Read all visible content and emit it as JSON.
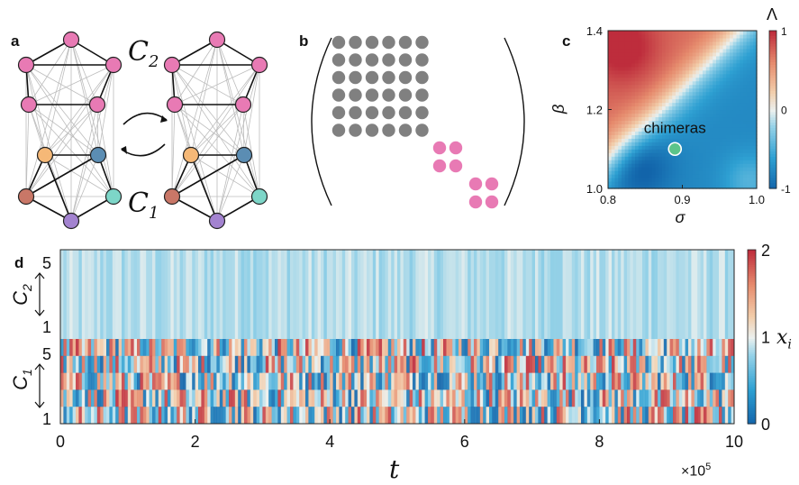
{
  "panels": {
    "a": {
      "letter": "a",
      "cluster_top_label": "C",
      "cluster_top_sub": "2",
      "cluster_bottom_label": "C",
      "cluster_bottom_sub": "1",
      "node_colors_top": [
        "#e87ab4",
        "#e87ab4",
        "#e87ab4",
        "#e87ab4",
        "#e87ab4"
      ],
      "node_colors_bottom": [
        "#f5b877",
        "#5b8db3",
        "#c97767",
        "#7dd6c8",
        "#a383d0"
      ]
    },
    "b": {
      "letter": "b",
      "gray_block_rows": 6,
      "gray_block_cols": 6,
      "gray_color": "#808080",
      "pink_color": "#e87ab4"
    },
    "c": {
      "letter": "c",
      "annotation": "chimeras",
      "xlabel": "σ",
      "ylabel": "β",
      "x_ticks": [
        "0.8",
        "0.9",
        "1.0"
      ],
      "y_ticks": [
        "1.0",
        "1.2",
        "1.4"
      ],
      "colorbar_label": "Λ",
      "colorbar_ticks": [
        "1",
        "0",
        "-1"
      ],
      "marker_color": "#5cc48a"
    },
    "d": {
      "letter": "d",
      "xlabel": "t",
      "x_ticks": [
        "0",
        "2",
        "4",
        "6",
        "8",
        "10"
      ],
      "x_multiplier": "×10",
      "x_multiplier_exp": "5",
      "y_top_label": "C",
      "y_top_sub": "2",
      "y_bottom_label": "C",
      "y_bottom_sub": "1",
      "y_ticks_top": [
        "5",
        "1"
      ],
      "y_ticks_bottom": [
        "5",
        "1"
      ],
      "colorbar_ticks": [
        "2",
        "1",
        "0"
      ],
      "colorbar_label": "x",
      "colorbar_label_sub": "i"
    }
  },
  "chart_data": [
    {
      "type": "heatmap",
      "panel": "c",
      "xlabel": "σ",
      "ylabel": "β",
      "xlim": [
        0.8,
        1.0
      ],
      "ylim": [
        1.0,
        1.4
      ],
      "colorbar": {
        "label": "Λ",
        "range": [
          -1,
          1
        ],
        "ticks": [
          -1,
          0,
          1
        ]
      },
      "annotations": [
        {
          "text": "chimeras",
          "sigma": 0.89,
          "beta": 1.1
        }
      ]
    },
    {
      "type": "heatmap",
      "panel": "d",
      "xlabel": "t",
      "xlim": [
        0,
        10
      ],
      "x_scale": "×10^5",
      "x_ticks": [
        0,
        2,
        4,
        6,
        8,
        10
      ],
      "rows": [
        {
          "group": "C2",
          "nodes": [
            5,
            4,
            3,
            2,
            1
          ]
        },
        {
          "group": "C1",
          "nodes": [
            5,
            4,
            3,
            2,
            1
          ]
        }
      ],
      "colorbar": {
        "label": "x_i",
        "range": [
          0,
          2
        ],
        "ticks": [
          0,
          1,
          2
        ]
      }
    }
  ]
}
